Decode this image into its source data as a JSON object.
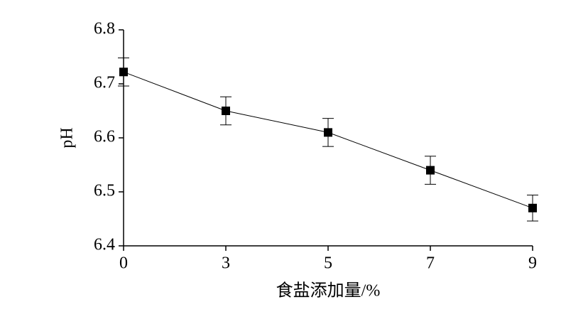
{
  "chart_data": {
    "type": "line",
    "x_label": "食盐添加量/%",
    "y_label": "pH",
    "categories": [
      "0",
      "3",
      "5",
      "7",
      "9"
    ],
    "values": [
      6.722,
      6.65,
      6.61,
      6.54,
      6.47
    ],
    "errors": [
      0.026,
      0.026,
      0.026,
      0.026,
      0.024
    ],
    "color": "#000000",
    "ylim": [
      6.4,
      6.8
    ],
    "yticks": [
      6.4,
      6.5,
      6.6,
      6.7,
      6.8
    ],
    "grid": false
  }
}
